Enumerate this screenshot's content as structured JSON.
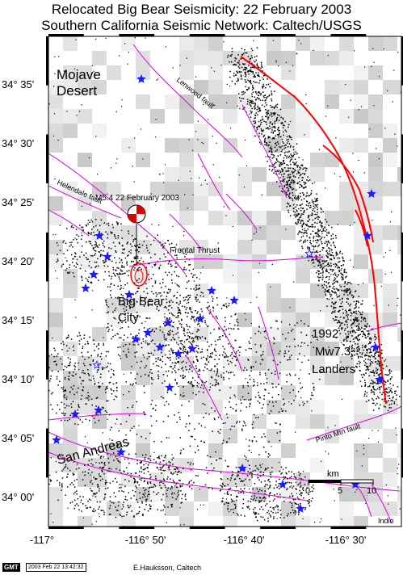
{
  "title": {
    "line1": "Relocated Big Bear Seismicity: 22 February 2003",
    "line2": "Southern California Seismic Network: Caltech/USGS"
  },
  "map": {
    "lon_range": [
      -117.0,
      -116.42
    ],
    "lat_range": [
      33.96,
      34.645
    ],
    "y_ticks": [
      {
        "lat": 34.5833,
        "label": "34° 35'"
      },
      {
        "lat": 34.5,
        "label": "34° 30'"
      },
      {
        "lat": 34.4167,
        "label": "34° 25'"
      },
      {
        "lat": 34.3333,
        "label": "34° 20'"
      },
      {
        "lat": 34.25,
        "label": "34° 15'"
      },
      {
        "lat": 34.1667,
        "label": "34° 10'"
      },
      {
        "lat": 34.0833,
        "label": "34° 05'"
      },
      {
        "lat": 34.0,
        "label": "34° 00'"
      }
    ],
    "x_ticks": [
      {
        "lon": -117.0,
        "label": "-117°"
      },
      {
        "lon": -116.8333,
        "label": "-116° 50'"
      },
      {
        "lon": -116.6667,
        "label": "-116° 40'"
      },
      {
        "lon": -116.5,
        "label": "-116° 30'"
      }
    ],
    "labels": {
      "mojave": "Mojave",
      "desert": "Desert",
      "lenwood": "Lenwood fault",
      "helendale": "Helendale fault",
      "mainshock": "M5.4 22 February 2003",
      "frontal": "Frontal Thrust",
      "bigbear": "Big Bear",
      "city": "City",
      "year": "1992",
      "mag": "Mw7.3",
      "landers": "Landers",
      "pinto": "Pinto Mtn fault",
      "sanandreas": "San Andreas",
      "km": "km",
      "scale0": "0",
      "scale5": "5",
      "scale10": "10",
      "indio": "Indio"
    },
    "colors": {
      "faults": "#e000e0",
      "quakes": "#000000",
      "stars": "#1a1aff",
      "rupture": "#ff0000"
    }
  },
  "footer": {
    "gmt": "GMT",
    "stamp": "2003 Feb 22 13:42:32",
    "credit": "E.Hauksson, Caltech"
  }
}
